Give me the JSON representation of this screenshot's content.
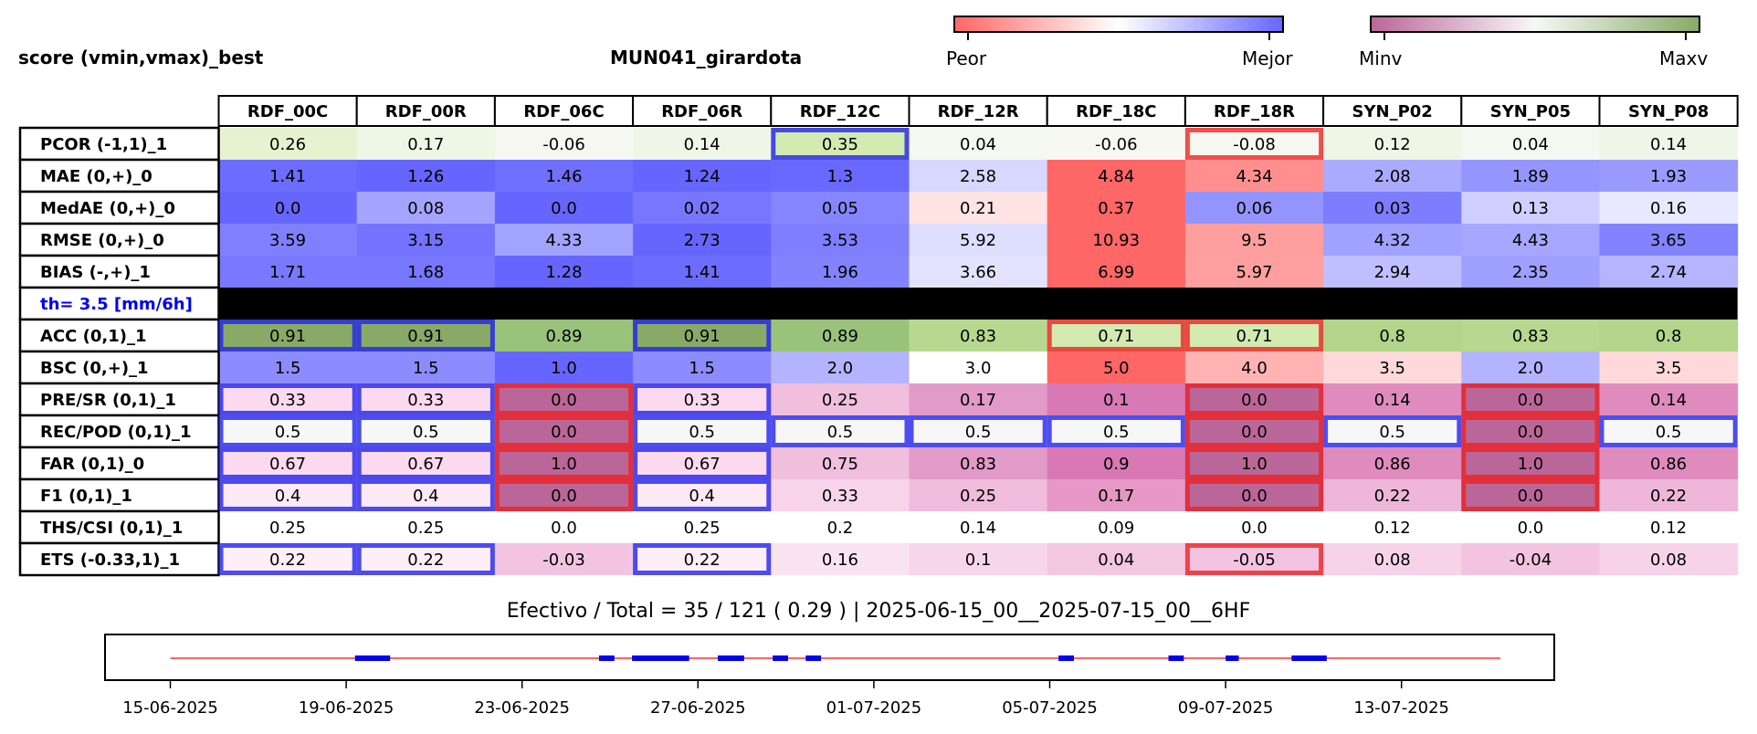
{
  "header": {
    "left_title": "score (vmin,vmax)_best",
    "center_title": "MUN041_girardota"
  },
  "colorbars": [
    {
      "min_label": "Peor",
      "max_label": "Mejor",
      "colors": [
        "#ff6666",
        "#ffffff",
        "#6666ff"
      ]
    },
    {
      "min_label": "Minv",
      "max_label": "Maxv",
      "colors": [
        "#bb6699",
        "#f7f7f7",
        "#88aa66"
      ]
    }
  ],
  "chart_data": {
    "type": "table",
    "columns": [
      "RDF_00C",
      "RDF_00R",
      "RDF_06C",
      "RDF_06R",
      "RDF_12C",
      "RDF_12R",
      "RDF_18C",
      "RDF_18R",
      "SYN_P02",
      "SYN_P05",
      "SYN_P08"
    ],
    "rows": [
      {
        "label": "PCOR (-1,1)_1",
        "values": [
          "0.26",
          "0.17",
          "-0.06",
          "0.14",
          "0.35",
          "0.04",
          "-0.06",
          "-0.08",
          "0.12",
          "0.04",
          "0.14"
        ],
        "colors": [
          "#e6f2d0",
          "#eef6e6",
          "#f6f7f1",
          "#eff6e8",
          "#d3eab0",
          "#f5f7f1",
          "#f6f7f1",
          "#f7f7f1",
          "#f0f6e6",
          "#f5f7f1",
          "#eff6e8"
        ]
      },
      {
        "label": "MAE (0,+)_0",
        "values": [
          "1.41",
          "1.26",
          "1.46",
          "1.24",
          "1.3",
          "2.58",
          "4.84",
          "4.34",
          "2.08",
          "1.89",
          "1.93"
        ],
        "colors": [
          "#6c6cff",
          "#6666ff",
          "#7070ff",
          "#6666ff",
          "#6969ff",
          "#d7d7ff",
          "#ff6666",
          "#ff8f8f",
          "#aaaaff",
          "#9595ff",
          "#9b9bff"
        ]
      },
      {
        "label": "MedAE (0,+)_0",
        "values": [
          "0.0",
          "0.08",
          "0.0",
          "0.02",
          "0.05",
          "0.21",
          "0.37",
          "0.06",
          "0.03",
          "0.13",
          "0.16"
        ],
        "colors": [
          "#6666ff",
          "#a4a4ff",
          "#6666ff",
          "#7676ff",
          "#8585ff",
          "#ffe4e4",
          "#ff6666",
          "#9494ff",
          "#7d7dff",
          "#cfcfff",
          "#e8e8ff"
        ]
      },
      {
        "label": "RMSE (0,+)_0",
        "values": [
          "3.59",
          "3.15",
          "4.33",
          "2.73",
          "3.53",
          "5.92",
          "10.93",
          "9.5",
          "4.32",
          "4.43",
          "3.65"
        ],
        "colors": [
          "#8080ff",
          "#7373ff",
          "#a2a2ff",
          "#6666ff",
          "#7e7eff",
          "#dedeff",
          "#ff6666",
          "#ff9e9e",
          "#a1a1ff",
          "#a6a6ff",
          "#8383ff"
        ]
      },
      {
        "label": "BIAS (-,+)_1",
        "values": [
          "1.71",
          "1.68",
          "1.28",
          "1.41",
          "1.96",
          "3.66",
          "6.99",
          "5.97",
          "2.94",
          "2.35",
          "2.74"
        ],
        "colors": [
          "#7979ff",
          "#7777ff",
          "#6666ff",
          "#6c6cff",
          "#8383ff",
          "#e3e3ff",
          "#ff6666",
          "#ff9f9f",
          "#bfbfff",
          "#9f9fff",
          "#b4b4ff"
        ]
      },
      {
        "label": "th= 3.5 [mm/6h]",
        "separator": true
      },
      {
        "label": "ACC (0,1)_1",
        "values": [
          "0.91",
          "0.91",
          "0.89",
          "0.91",
          "0.89",
          "0.83",
          "0.71",
          "0.71",
          "0.8",
          "0.83",
          "0.8"
        ],
        "colors": [
          "#88aa66",
          "#88aa66",
          "#99c27a",
          "#88aa66",
          "#99c27a",
          "#b6d88f",
          "#d3eab0",
          "#d3eab0",
          "#b2d58a",
          "#b6d88f",
          "#b2d58a"
        ]
      },
      {
        "label": "BSC (0,+)_1",
        "values": [
          "1.5",
          "1.5",
          "1.0",
          "1.5",
          "2.0",
          "3.0",
          "5.0",
          "4.0",
          "3.5",
          "2.0",
          "3.5"
        ],
        "colors": [
          "#8c8cff",
          "#8c8cff",
          "#6666ff",
          "#8c8cff",
          "#b3b3ff",
          "#ffffff",
          "#ff6666",
          "#ffb3b3",
          "#ffd9d9",
          "#b3b3ff",
          "#ffd9d9"
        ]
      },
      {
        "label": "PRE/SR (0,1)_1",
        "values": [
          "0.33",
          "0.33",
          "0.0",
          "0.33",
          "0.25",
          "0.17",
          "0.1",
          "0.0",
          "0.14",
          "0.0",
          "0.14"
        ],
        "colors": [
          "#fbd9ee",
          "#fbd9ee",
          "#bb6699",
          "#fbd9ee",
          "#f0bfdd",
          "#e29ac8",
          "#d878b5",
          "#bb6699",
          "#e08bbd",
          "#bb6699",
          "#e08bbd"
        ]
      },
      {
        "label": "REC/POD (0,1)_1",
        "values": [
          "0.5",
          "0.5",
          "0.0",
          "0.5",
          "0.5",
          "0.5",
          "0.5",
          "0.0",
          "0.5",
          "0.0",
          "0.5"
        ],
        "colors": [
          "#f7f7f7",
          "#f7f7f7",
          "#bb6699",
          "#f7f7f7",
          "#f7f7f7",
          "#f7f7f7",
          "#f7f7f7",
          "#bb6699",
          "#f7f7f7",
          "#bb6699",
          "#f7f7f7"
        ]
      },
      {
        "label": "FAR (0,1)_0",
        "values": [
          "0.67",
          "0.67",
          "1.0",
          "0.67",
          "0.75",
          "0.83",
          "0.9",
          "1.0",
          "0.86",
          "1.0",
          "0.86"
        ],
        "colors": [
          "#fbd9ee",
          "#fbd9ee",
          "#bb6699",
          "#fbd9ee",
          "#f0bfdd",
          "#e29ac8",
          "#d878b5",
          "#bb6699",
          "#e08bbd",
          "#bb6699",
          "#e08bbd"
        ]
      },
      {
        "label": "F1 (0,1)_1",
        "values": [
          "0.4",
          "0.4",
          "0.0",
          "0.4",
          "0.33",
          "0.25",
          "0.17",
          "0.0",
          "0.22",
          "0.0",
          "0.22"
        ],
        "colors": [
          "#fce9f4",
          "#fce9f4",
          "#bb6699",
          "#fce9f4",
          "#f8d4ea",
          "#f0bcdc",
          "#e697c5",
          "#bb6699",
          "#eeb6d8",
          "#bb6699",
          "#eeb6d8"
        ]
      },
      {
        "label": "THS/CSI (0,1)_1",
        "values": [
          "0.25",
          "0.25",
          "0.0",
          "0.25",
          "0.2",
          "0.14",
          "0.09",
          "0.0",
          "0.12",
          "0.0",
          "0.12"
        ],
        "colors": [
          "#ffffff",
          "#ffffff",
          "#ffffff",
          "#ffffff",
          "#ffffff",
          "#ffffff",
          "#ffffff",
          "#ffffff",
          "#ffffff",
          "#ffffff",
          "#ffffff"
        ]
      },
      {
        "label": "ETS (-0.33,1)_1",
        "values": [
          "0.22",
          "0.22",
          "-0.03",
          "0.22",
          "0.16",
          "0.1",
          "0.04",
          "-0.05",
          "0.08",
          "-0.04",
          "0.08"
        ],
        "colors": [
          "#fdeef7",
          "#fdeef7",
          "#f3c4e2",
          "#fdeef7",
          "#fae4f2",
          "#f7d5eb",
          "#f3c6e1",
          "#f3c4e2",
          "#f7d3ea",
          "#f3c4e2",
          "#f7d3ea"
        ]
      }
    ],
    "highlights": [
      {
        "row": 0,
        "col": 4,
        "kind": "best"
      },
      {
        "row": 0,
        "col": 7,
        "kind": "worst"
      },
      {
        "row": 6,
        "col": 0,
        "kind": "best"
      },
      {
        "row": 6,
        "col": 1,
        "kind": "best"
      },
      {
        "row": 6,
        "col": 3,
        "kind": "best"
      },
      {
        "row": 6,
        "col": 6,
        "kind": "worst"
      },
      {
        "row": 6,
        "col": 7,
        "kind": "worst"
      },
      {
        "row": 8,
        "col": 0,
        "kind": "best"
      },
      {
        "row": 8,
        "col": 1,
        "kind": "best"
      },
      {
        "row": 8,
        "col": 3,
        "kind": "best"
      },
      {
        "row": 8,
        "col": 2,
        "kind": "worst"
      },
      {
        "row": 8,
        "col": 7,
        "kind": "worst"
      },
      {
        "row": 8,
        "col": 9,
        "kind": "worst"
      },
      {
        "row": 9,
        "col": 0,
        "kind": "best"
      },
      {
        "row": 9,
        "col": 1,
        "kind": "best"
      },
      {
        "row": 9,
        "col": 3,
        "kind": "best"
      },
      {
        "row": 9,
        "col": 4,
        "kind": "best"
      },
      {
        "row": 9,
        "col": 5,
        "kind": "best"
      },
      {
        "row": 9,
        "col": 6,
        "kind": "best"
      },
      {
        "row": 9,
        "col": 8,
        "kind": "best"
      },
      {
        "row": 9,
        "col": 10,
        "kind": "best"
      },
      {
        "row": 9,
        "col": 2,
        "kind": "worst"
      },
      {
        "row": 9,
        "col": 7,
        "kind": "worst"
      },
      {
        "row": 9,
        "col": 9,
        "kind": "worst"
      },
      {
        "row": 10,
        "col": 0,
        "kind": "best"
      },
      {
        "row": 10,
        "col": 1,
        "kind": "best"
      },
      {
        "row": 10,
        "col": 3,
        "kind": "best"
      },
      {
        "row": 10,
        "col": 2,
        "kind": "worst"
      },
      {
        "row": 10,
        "col": 7,
        "kind": "worst"
      },
      {
        "row": 10,
        "col": 9,
        "kind": "worst"
      },
      {
        "row": 11,
        "col": 0,
        "kind": "best"
      },
      {
        "row": 11,
        "col": 1,
        "kind": "best"
      },
      {
        "row": 11,
        "col": 3,
        "kind": "best"
      },
      {
        "row": 11,
        "col": 2,
        "kind": "worst"
      },
      {
        "row": 11,
        "col": 7,
        "kind": "worst"
      },
      {
        "row": 11,
        "col": 9,
        "kind": "worst"
      },
      {
        "row": 13,
        "col": 0,
        "kind": "best"
      },
      {
        "row": 13,
        "col": 1,
        "kind": "best"
      },
      {
        "row": 13,
        "col": 3,
        "kind": "best"
      },
      {
        "row": 13,
        "col": 7,
        "kind": "worst"
      }
    ],
    "highlight_colors": {
      "best": "#2222ee",
      "worst": "#ee2222"
    },
    "separator_label_color": "#0000ee"
  },
  "footer": {
    "summary": "Efectivo / Total  =  35 / 121 ( 0.29 ) | 2025-06-15_00__2025-07-15_00__6HF"
  },
  "timeline": {
    "start": "2025-06-15",
    "end": "2025-07-15",
    "line_range": [
      0,
      30.25
    ],
    "line_color": "#ff6666",
    "event_color": "#0000ee",
    "ticks": [
      "15-06-2025",
      "19-06-2025",
      "23-06-2025",
      "27-06-2025",
      "01-07-2025",
      "05-07-2025",
      "09-07-2025",
      "13-07-2025"
    ],
    "tick_days": [
      0,
      4,
      8,
      12,
      16,
      20,
      24,
      28
    ],
    "events": [
      [
        4.2,
        5.0
      ],
      [
        9.75,
        10.1
      ],
      [
        10.5,
        11.8
      ],
      [
        12.45,
        13.05
      ],
      [
        13.7,
        14.05
      ],
      [
        14.45,
        14.8
      ],
      [
        20.2,
        20.55
      ],
      [
        22.7,
        23.05
      ],
      [
        24.0,
        24.3
      ],
      [
        25.5,
        26.3
      ]
    ]
  }
}
